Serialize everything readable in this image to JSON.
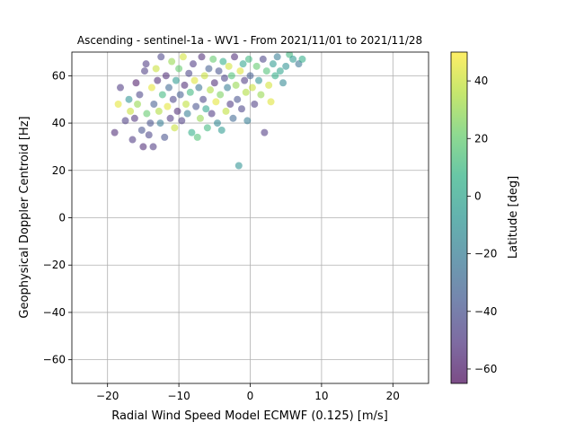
{
  "chart_data": {
    "type": "scatter",
    "title": "Ascending - sentinel-1a - WV1 - From 2021/11/01 to 2021/11/28",
    "xlabel": "Radial Wind Speed Model ECMWF (0.125) [m/s]",
    "ylabel": "Geophysical Doppler Centroid [Hz]",
    "xlim": [
      -25,
      25
    ],
    "ylim": [
      -70,
      70
    ],
    "xticks": [
      -20,
      -10,
      0,
      10,
      20
    ],
    "yticks": [
      -60,
      -40,
      -20,
      0,
      20,
      40,
      60
    ],
    "grid": true,
    "colormap": "viridis",
    "point_alpha": 0.55,
    "colorbar": {
      "label": "Latitude [deg]",
      "range": [
        -65,
        50
      ],
      "ticks": [
        -60,
        -40,
        -20,
        0,
        20,
        40
      ]
    },
    "points": [
      {
        "x": -19,
        "y": 36,
        "c": -55
      },
      {
        "x": -18.5,
        "y": 48,
        "c": 45
      },
      {
        "x": -18.2,
        "y": 55,
        "c": -50
      },
      {
        "x": -17.5,
        "y": 41,
        "c": -48
      },
      {
        "x": -17,
        "y": 50,
        "c": -10
      },
      {
        "x": -16.8,
        "y": 45,
        "c": 40
      },
      {
        "x": -16.5,
        "y": 33,
        "c": -50
      },
      {
        "x": -16.2,
        "y": 42,
        "c": -52
      },
      {
        "x": -16,
        "y": 57,
        "c": -60
      },
      {
        "x": -15.8,
        "y": 48,
        "c": 30
      },
      {
        "x": -15.5,
        "y": 52,
        "c": -45
      },
      {
        "x": -15.2,
        "y": 37,
        "c": -40
      },
      {
        "x": -15,
        "y": 30,
        "c": -55
      },
      {
        "x": -14.8,
        "y": 62,
        "c": -48
      },
      {
        "x": -14.6,
        "y": 65,
        "c": -50
      },
      {
        "x": -14.5,
        "y": 44,
        "c": 20
      },
      {
        "x": -14.2,
        "y": 35,
        "c": -45
      },
      {
        "x": -14,
        "y": 40,
        "c": -40
      },
      {
        "x": -13.8,
        "y": 55,
        "c": 45
      },
      {
        "x": -13.6,
        "y": 30,
        "c": -50
      },
      {
        "x": -13.5,
        "y": 48,
        "c": -35
      },
      {
        "x": -13.2,
        "y": 63,
        "c": 40
      },
      {
        "x": -13,
        "y": 58,
        "c": -55
      },
      {
        "x": -12.8,
        "y": 45,
        "c": 35
      },
      {
        "x": -12.6,
        "y": 40,
        "c": -20
      },
      {
        "x": -12.5,
        "y": 68,
        "c": -45
      },
      {
        "x": -12.3,
        "y": 52,
        "c": 10
      },
      {
        "x": -12,
        "y": 34,
        "c": -40
      },
      {
        "x": -11.8,
        "y": 60,
        "c": -55
      },
      {
        "x": -11.6,
        "y": 47,
        "c": 45
      },
      {
        "x": -11.4,
        "y": 55,
        "c": -30
      },
      {
        "x": -11.2,
        "y": 42,
        "c": -50
      },
      {
        "x": -11,
        "y": 66,
        "c": 30
      },
      {
        "x": -10.8,
        "y": 50,
        "c": -45
      },
      {
        "x": -10.6,
        "y": 38,
        "c": 40
      },
      {
        "x": -10.4,
        "y": 58,
        "c": -5
      },
      {
        "x": -10.2,
        "y": 45,
        "c": -55
      },
      {
        "x": -10,
        "y": 63,
        "c": 20
      },
      {
        "x": -9.8,
        "y": 52,
        "c": -35
      },
      {
        "x": -9.6,
        "y": 41,
        "c": -48
      },
      {
        "x": -9.4,
        "y": 68,
        "c": 42
      },
      {
        "x": -9.2,
        "y": 56,
        "c": -55
      },
      {
        "x": -9,
        "y": 48,
        "c": 38
      },
      {
        "x": -8.8,
        "y": 44,
        "c": -20
      },
      {
        "x": -8.6,
        "y": 61,
        "c": -45
      },
      {
        "x": -8.4,
        "y": 53,
        "c": 10
      },
      {
        "x": -8.2,
        "y": 36,
        "c": 5
      },
      {
        "x": -8,
        "y": 65,
        "c": -50
      },
      {
        "x": -7.8,
        "y": 58,
        "c": 44
      },
      {
        "x": -7.6,
        "y": 47,
        "c": -40
      },
      {
        "x": -7.4,
        "y": 34,
        "c": 15
      },
      {
        "x": -7.2,
        "y": 55,
        "c": -25
      },
      {
        "x": -7,
        "y": 42,
        "c": 30
      },
      {
        "x": -6.8,
        "y": 68,
        "c": -55
      },
      {
        "x": -6.6,
        "y": 50,
        "c": -45
      },
      {
        "x": -6.4,
        "y": 60,
        "c": 40
      },
      {
        "x": -6.2,
        "y": 46,
        "c": 0
      },
      {
        "x": -6,
        "y": 38,
        "c": 10
      },
      {
        "x": -5.8,
        "y": 63,
        "c": -35
      },
      {
        "x": -5.6,
        "y": 54,
        "c": 35
      },
      {
        "x": -5.4,
        "y": 44,
        "c": -50
      },
      {
        "x": -5.2,
        "y": 67,
        "c": 20
      },
      {
        "x": -5,
        "y": 57,
        "c": -55
      },
      {
        "x": -4.8,
        "y": 49,
        "c": 45
      },
      {
        "x": -4.6,
        "y": 40,
        "c": -15
      },
      {
        "x": -4.4,
        "y": 62,
        "c": -40
      },
      {
        "x": -4.2,
        "y": 52,
        "c": 25
      },
      {
        "x": -4,
        "y": 37,
        "c": -5
      },
      {
        "x": -3.8,
        "y": 66,
        "c": 5
      },
      {
        "x": -3.6,
        "y": 59,
        "c": -45
      },
      {
        "x": -3.4,
        "y": 45,
        "c": 38
      },
      {
        "x": -3.2,
        "y": 55,
        "c": -20
      },
      {
        "x": -3,
        "y": 64,
        "c": 42
      },
      {
        "x": -2.8,
        "y": 48,
        "c": -50
      },
      {
        "x": -2.6,
        "y": 60,
        "c": 15
      },
      {
        "x": -2.4,
        "y": 42,
        "c": -30
      },
      {
        "x": -2.2,
        "y": 68,
        "c": -55
      },
      {
        "x": -2,
        "y": 56,
        "c": 30
      },
      {
        "x": -1.8,
        "y": 50,
        "c": -40
      },
      {
        "x": -1.6,
        "y": 22,
        "c": -10
      },
      {
        "x": -1.4,
        "y": 62,
        "c": 44
      },
      {
        "x": -1.2,
        "y": 46,
        "c": -45
      },
      {
        "x": -1,
        "y": 65,
        "c": 0
      },
      {
        "x": -0.8,
        "y": 58,
        "c": -50
      },
      {
        "x": -0.6,
        "y": 53,
        "c": 35
      },
      {
        "x": -0.4,
        "y": 41,
        "c": -20
      },
      {
        "x": -0.2,
        "y": 67,
        "c": 10
      },
      {
        "x": 0,
        "y": 60,
        "c": -35
      },
      {
        "x": 0.3,
        "y": 55,
        "c": 40
      },
      {
        "x": 0.6,
        "y": 48,
        "c": -48
      },
      {
        "x": 0.9,
        "y": 64,
        "c": 20
      },
      {
        "x": 1.2,
        "y": 58,
        "c": -10
      },
      {
        "x": 1.5,
        "y": 52,
        "c": 30
      },
      {
        "x": 1.8,
        "y": 67,
        "c": -45
      },
      {
        "x": 2,
        "y": 36,
        "c": -50
      },
      {
        "x": 2.3,
        "y": 62,
        "c": 15
      },
      {
        "x": 2.6,
        "y": 56,
        "c": 42
      },
      {
        "x": 2.9,
        "y": 49,
        "c": 44
      },
      {
        "x": 3.2,
        "y": 65,
        "c": -5
      },
      {
        "x": 3.5,
        "y": 60,
        "c": 5
      },
      {
        "x": 3.8,
        "y": 68,
        "c": -20
      },
      {
        "x": 4.2,
        "y": 62,
        "c": 0
      },
      {
        "x": 4.6,
        "y": 57,
        "c": -15
      },
      {
        "x": 5,
        "y": 64,
        "c": -10
      },
      {
        "x": 5.5,
        "y": 69,
        "c": 10
      },
      {
        "x": 6,
        "y": 67,
        "c": -5
      },
      {
        "x": 6.8,
        "y": 65,
        "c": -25
      },
      {
        "x": 7.3,
        "y": 67,
        "c": 5
      }
    ]
  }
}
